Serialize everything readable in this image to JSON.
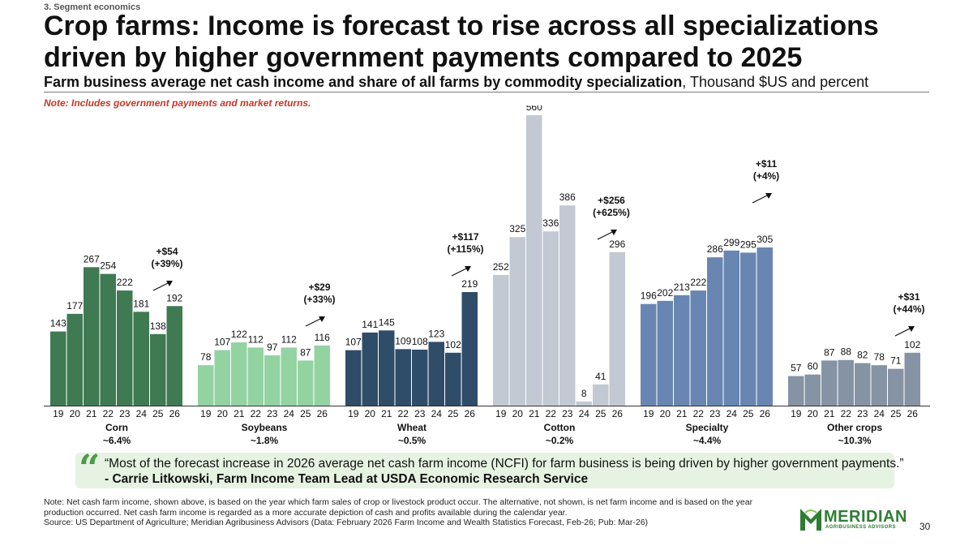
{
  "header": {
    "section": "3. Segment economics",
    "title": "Crop farms: Income is forecast to rise across all specializations driven by higher government payments compared to 2025",
    "subtitle_bold": "Farm business average net cash income and share of all farms by commodity specialization",
    "subtitle_rest": ", Thousand $US and percent",
    "note": "Note: Includes government payments and market returns."
  },
  "chart_data": {
    "type": "bar",
    "unit": "Thousand $US",
    "categories": [
      "19",
      "20",
      "21",
      "22",
      "23",
      "24",
      "25",
      "26"
    ],
    "groups": [
      {
        "name": "Corn",
        "share": "~6.4%",
        "values": [
          143,
          177,
          267,
          254,
          222,
          181,
          138,
          192
        ],
        "color": "#3f7a52",
        "change": "+$54",
        "change_pct": "(+39%)"
      },
      {
        "name": "Soybeans",
        "share": "~1.8%",
        "values": [
          78,
          107,
          122,
          112,
          97,
          112,
          87,
          116
        ],
        "color": "#93d3a2",
        "change": "+$29",
        "change_pct": "(+33%)"
      },
      {
        "name": "Wheat",
        "share": "~0.5%",
        "values": [
          107,
          141,
          145,
          109,
          108,
          123,
          102,
          219
        ],
        "color": "#2f4c68",
        "change": "+$117",
        "change_pct": "(+115%)"
      },
      {
        "name": "Cotton",
        "share": "~0.2%",
        "values": [
          252,
          325,
          560,
          336,
          386,
          8,
          41,
          296
        ],
        "color": "#c2c9d3",
        "change": "+$256",
        "change_pct": "(+625%)"
      },
      {
        "name": "Specialty",
        "share": "~4.4%",
        "values": [
          196,
          202,
          213,
          222,
          286,
          299,
          295,
          305
        ],
        "color": "#6886b1",
        "change": "+$11",
        "change_pct": "(+4%)"
      },
      {
        "name": "Other crops",
        "share": "~10.3%",
        "values": [
          57,
          60,
          87,
          88,
          82,
          78,
          71,
          102
        ],
        "color": "#8593a4",
        "change": "+$31",
        "change_pct": "(+44%)"
      }
    ],
    "ylim": [
      0,
      560
    ],
    "grid": false,
    "legend": "none"
  },
  "quote": {
    "mark": "“",
    "text": "“Most of the forecast increase in 2026 average net cash farm income (NCFI) for farm business is being driven by higher government payments.”",
    "author": "- Carrie Litkowski, Farm Income Team Lead at USDA Economic Research Service"
  },
  "footnote": {
    "line1": "Note: Net cash farm income, shown above, is based on the year which farm sales of crop or livestock product occur. The alternative, not shown, is net farm income and is based on the year production occurred. Net cash farm income is regarded as a more accurate depiction of cash and profits available during the calendar year.",
    "line2": "Source: US Department of Agriculture; Meridian Agribusiness Advisors (Data: February 2026 Farm Income and Wealth Statistics Forecast, Feb-26; Pub: Mar-26)"
  },
  "logo": {
    "name": "MERIDIAN",
    "tagline": "AGRIBUSINESS ADVISORS",
    "color": "#2e7d32"
  },
  "page_number": "30"
}
